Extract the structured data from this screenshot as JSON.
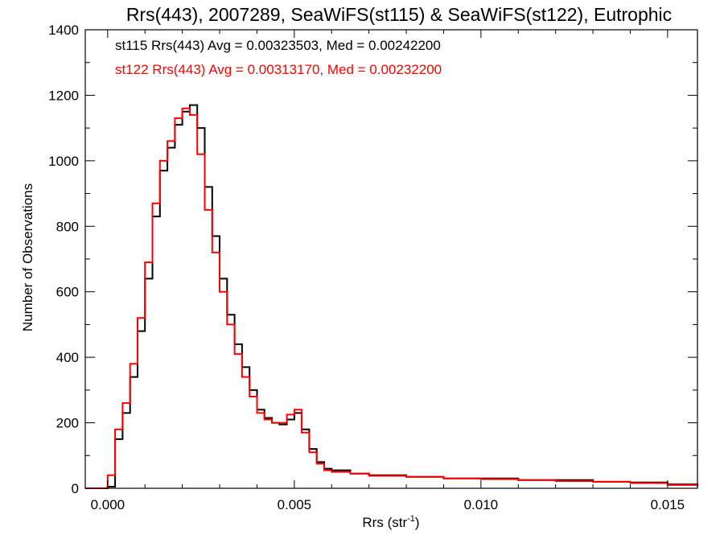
{
  "chart_data": {
    "type": "line",
    "title": "Rrs(443), 2007289, SeaWiFS(st115) & SeaWiFS(st122), Eutrophic",
    "xlabel": "Rrs (str",
    "xlabel_sup": "-1",
    "xlabel_close": ")",
    "ylabel": "Number of Observations",
    "xlim": [
      -0.0006,
      0.0158
    ],
    "ylim": [
      0,
      1400
    ],
    "x_ticks": [
      0.0,
      0.005,
      0.01,
      0.015
    ],
    "x_tick_labels": [
      "0.000",
      "0.005",
      "0.010",
      "0.015"
    ],
    "y_ticks": [
      0,
      200,
      400,
      600,
      800,
      1000,
      1200,
      1400
    ],
    "y_tick_labels": [
      "0",
      "200",
      "400",
      "600",
      "800",
      "1000",
      "1200",
      "1400"
    ],
    "grid": false,
    "annotations": [
      {
        "text": "st115 Rrs(443) Avg = 0.00323503, Med = 0.00242200",
        "color": "#000000"
      },
      {
        "text": "st122 Rrs(443) Avg = 0.00313170, Med = 0.00232200",
        "color": "#ff0000"
      }
    ],
    "series": [
      {
        "color": "#000000",
        "x": [
          -0.0006,
          0.0,
          0.0002,
          0.0004,
          0.0006,
          0.0008,
          0.001,
          0.0012,
          0.0014,
          0.0016,
          0.0018,
          0.002,
          0.0022,
          0.0024,
          0.0026,
          0.0028,
          0.003,
          0.0032,
          0.0034,
          0.0036,
          0.0038,
          0.004,
          0.0042,
          0.0044,
          0.0046,
          0.0048,
          0.005,
          0.0052,
          0.0054,
          0.0056,
          0.0058,
          0.006,
          0.0065,
          0.007,
          0.008,
          0.009,
          0.01,
          0.011,
          0.012,
          0.013,
          0.014,
          0.015,
          0.0158
        ],
        "y": [
          0,
          5,
          150,
          230,
          340,
          480,
          640,
          830,
          970,
          1040,
          1110,
          1150,
          1170,
          1100,
          920,
          770,
          640,
          530,
          440,
          370,
          300,
          240,
          215,
          200,
          195,
          210,
          230,
          180,
          120,
          80,
          60,
          55,
          45,
          40,
          35,
          30,
          30,
          25,
          25,
          20,
          18,
          12,
          5
        ]
      },
      {
        "color": "#ff0000",
        "x": [
          -0.0006,
          0.0,
          0.0002,
          0.0004,
          0.0006,
          0.0008,
          0.001,
          0.0012,
          0.0014,
          0.0016,
          0.0018,
          0.002,
          0.0022,
          0.0024,
          0.0026,
          0.0028,
          0.003,
          0.0032,
          0.0034,
          0.0036,
          0.0038,
          0.004,
          0.0042,
          0.0044,
          0.0046,
          0.0048,
          0.005,
          0.0052,
          0.0054,
          0.0056,
          0.0058,
          0.006,
          0.0065,
          0.007,
          0.008,
          0.009,
          0.01,
          0.011,
          0.012,
          0.013,
          0.014,
          0.015,
          0.0158
        ],
        "y": [
          0,
          40,
          180,
          260,
          380,
          520,
          690,
          870,
          1000,
          1060,
          1130,
          1160,
          1140,
          1020,
          850,
          720,
          600,
          500,
          410,
          340,
          280,
          230,
          210,
          200,
          200,
          225,
          240,
          170,
          110,
          75,
          55,
          50,
          45,
          38,
          35,
          30,
          28,
          25,
          22,
          20,
          16,
          10,
          5
        ]
      }
    ]
  }
}
